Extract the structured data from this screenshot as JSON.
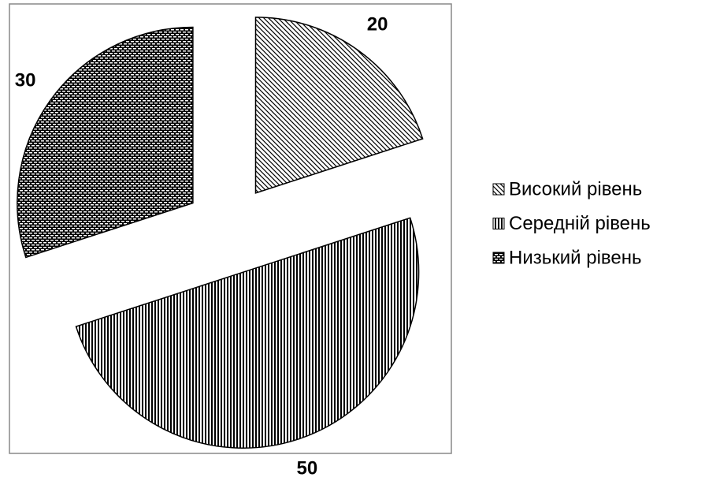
{
  "chart_data": {
    "type": "pie",
    "categories": [
      "Високий рівень",
      "Середній рівень",
      "Низький рівень"
    ],
    "values": [
      20,
      50,
      30
    ],
    "legend": "right"
  }
}
